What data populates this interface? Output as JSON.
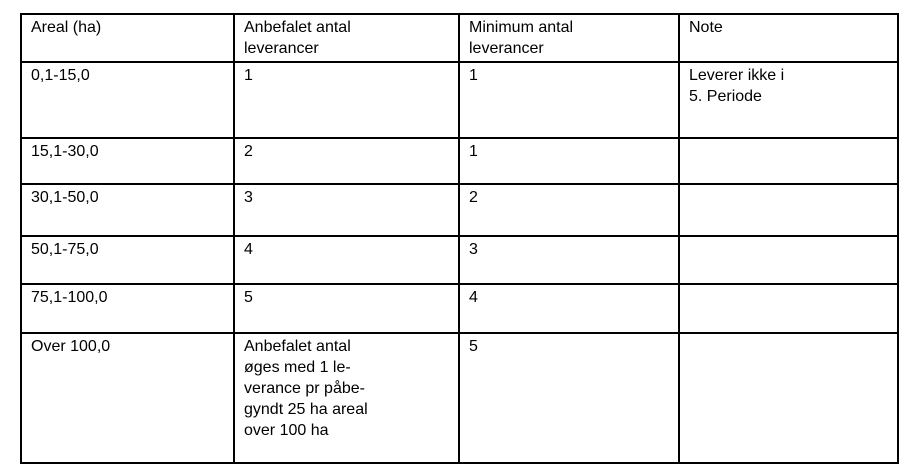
{
  "document": {
    "background_color": "#ffffff",
    "border_color": "#000000",
    "text_color": "#000000"
  },
  "table": {
    "columns": [
      "Areal (ha)",
      "Anbefalet antal\nleverancer",
      "Minimum antal\nleverancer",
      "Note"
    ],
    "rows": [
      [
        "0,1-15,0",
        "1",
        "1",
        "Leverer ikke i\n5. Periode"
      ],
      [
        "15,1-30,0",
        "2",
        "1",
        ""
      ],
      [
        "30,1-50,0",
        "3",
        "2",
        ""
      ],
      [
        "50,1-75,0",
        "4",
        "3",
        ""
      ],
      [
        "75,1-100,0",
        "5",
        "4",
        ""
      ],
      [
        "Over 100,0",
        "Anbefalet antal\nøges med 1 le-\nverance pr påbe-\ngyndt 25 ha areal\nover 100 ha",
        "5",
        ""
      ]
    ]
  }
}
